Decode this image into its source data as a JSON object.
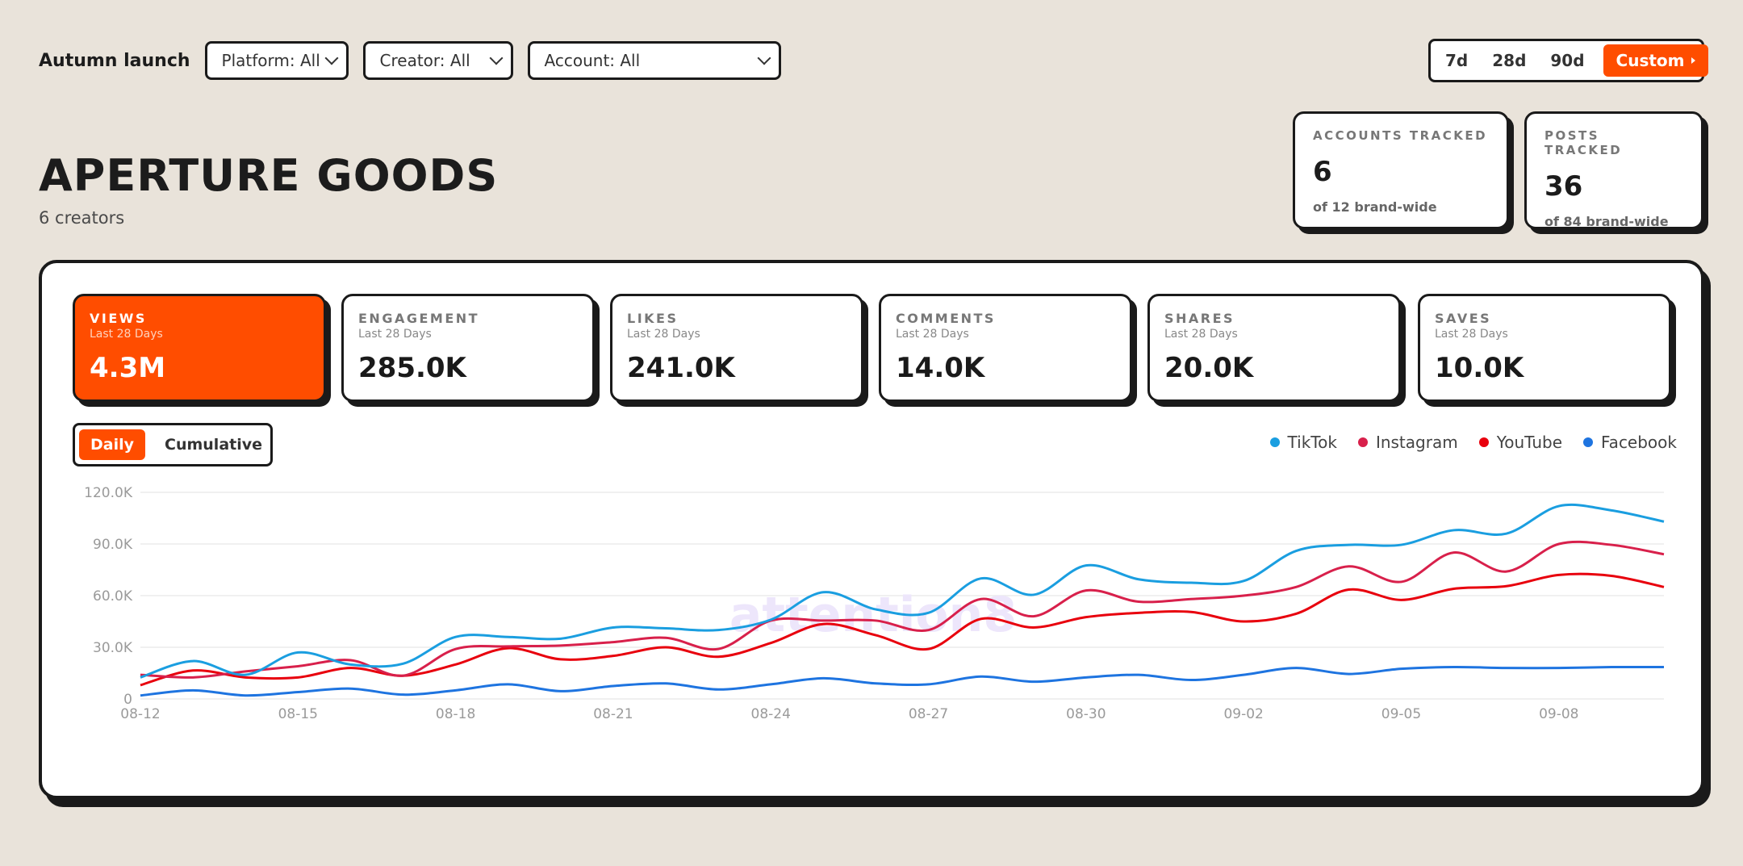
{
  "topbar": {
    "campaign": "Autumn launch",
    "filters": [
      {
        "label": "Platform: All"
      },
      {
        "label": "Creator: All"
      },
      {
        "label": "Account: All"
      }
    ],
    "ranges": [
      "7d",
      "28d",
      "90d",
      "Custom"
    ],
    "active_range": "Custom"
  },
  "header": {
    "title": "APERTURE GOODS",
    "subtitle": "6 creators"
  },
  "stats": [
    {
      "label": "ACCOUNTS TRACKED",
      "value": "6",
      "sub": "of 12 brand-wide"
    },
    {
      "label": "POSTS TRACKED",
      "value": "36",
      "sub": "of 84 brand-wide"
    }
  ],
  "metrics": [
    {
      "label": "VIEWS",
      "sub": "Last 28 Days",
      "value": "4.3M",
      "active": true
    },
    {
      "label": "ENGAGEMENT",
      "sub": "Last 28 Days",
      "value": "285.0K"
    },
    {
      "label": "LIKES",
      "sub": "Last 28 Days",
      "value": "241.0K"
    },
    {
      "label": "COMMENTS",
      "sub": "Last 28 Days",
      "value": "14.0K"
    },
    {
      "label": "SHARES",
      "sub": "Last 28 Days",
      "value": "20.0K"
    },
    {
      "label": "SAVES",
      "sub": "Last 28 Days",
      "value": "10.0K"
    }
  ],
  "toggle": {
    "options": [
      "Daily",
      "Cumulative"
    ],
    "active": "Daily"
  },
  "watermark": "attention8",
  "colors": {
    "accent": "#ff4d00",
    "background": "#e9e3da"
  },
  "chart_data": {
    "type": "line",
    "x": [
      "08-12",
      "08-13",
      "08-14",
      "08-15",
      "08-16",
      "08-17",
      "08-18",
      "08-19",
      "08-20",
      "08-21",
      "08-22",
      "08-23",
      "08-24",
      "08-25",
      "08-26",
      "08-27",
      "08-28",
      "08-29",
      "08-30",
      "08-31",
      "09-01",
      "09-02",
      "09-03",
      "09-04",
      "09-05",
      "09-06",
      "09-07",
      "09-08",
      "09-09",
      "09-10"
    ],
    "xticks": [
      "08-12",
      "08-15",
      "08-18",
      "08-21",
      "08-24",
      "08-27",
      "08-30",
      "09-02",
      "09-05",
      "09-08"
    ],
    "yticks": [
      "0",
      "30.0K",
      "60.0K",
      "90.0K",
      "120.0K"
    ],
    "ylim": [
      0,
      120000
    ],
    "series": [
      {
        "name": "TikTok",
        "color": "#1a9ee0",
        "values": [
          12500,
          22000,
          14000,
          27000,
          20000,
          20500,
          36000,
          36000,
          35000,
          41500,
          41000,
          40000,
          46000,
          62000,
          52000,
          50000,
          70000,
          60500,
          77500,
          69500,
          67500,
          68500,
          86000,
          89500,
          89500,
          98000,
          96000,
          112000,
          109500,
          103000
        ]
      },
      {
        "name": "Instagram",
        "color": "#d8204b",
        "values": [
          14000,
          12500,
          16000,
          19000,
          22500,
          13500,
          29000,
          30500,
          31000,
          33000,
          35500,
          29000,
          45500,
          45500,
          45500,
          40000,
          58000,
          48000,
          63000,
          56500,
          58000,
          60000,
          65000,
          77000,
          68000,
          85000,
          74000,
          90000,
          89500,
          84000
        ]
      },
      {
        "name": "YouTube",
        "color": "#e8000d",
        "values": [
          8000,
          16500,
          12500,
          12500,
          18000,
          13500,
          20000,
          29500,
          23000,
          25000,
          30000,
          24500,
          32500,
          43500,
          37000,
          29000,
          46500,
          41500,
          47500,
          50000,
          50500,
          45000,
          49500,
          63500,
          57500,
          64000,
          65500,
          72000,
          71500,
          65000
        ]
      },
      {
        "name": "Facebook",
        "color": "#1e74e0",
        "values": [
          2000,
          5000,
          2000,
          4000,
          6000,
          2500,
          5000,
          8500,
          4500,
          7500,
          9000,
          5500,
          8500,
          12000,
          9000,
          8500,
          13000,
          10000,
          12500,
          14000,
          11000,
          14000,
          18000,
          14500,
          17500,
          18500,
          18000,
          18000,
          18500,
          18500
        ]
      }
    ],
    "legend": "top-right",
    "grid": true
  }
}
